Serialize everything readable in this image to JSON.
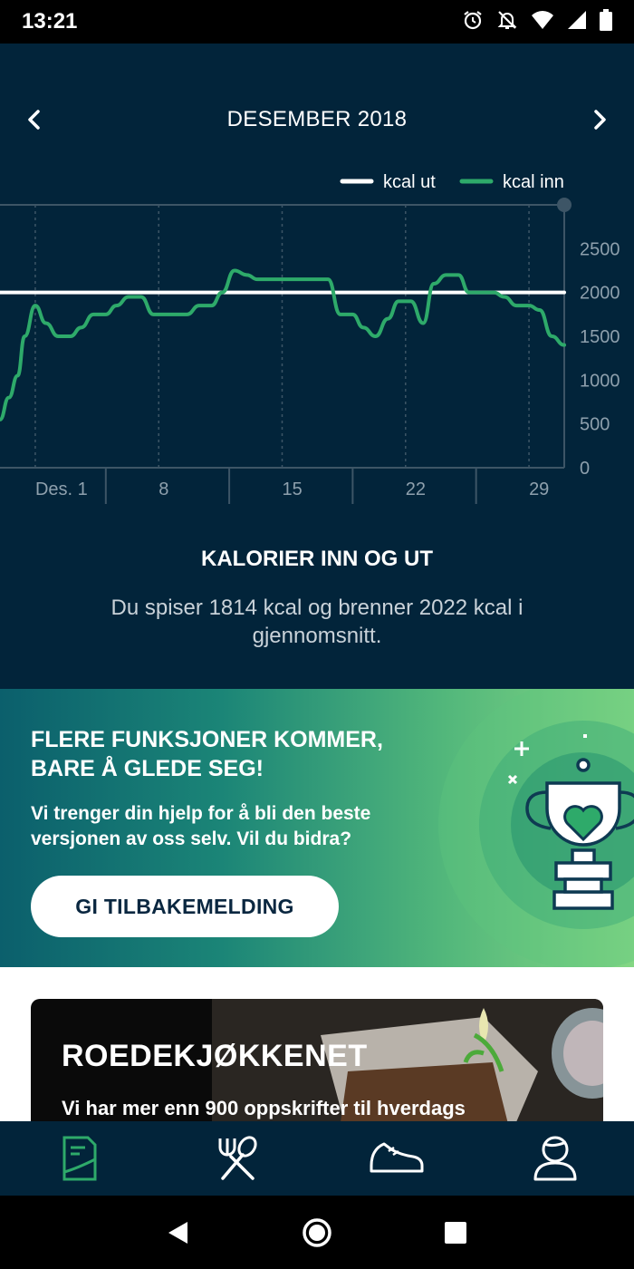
{
  "status": {
    "time": "13:21"
  },
  "header": {
    "month": "DESEMBER 2018"
  },
  "chart_data": {
    "type": "line",
    "legend": [
      "kcal ut",
      "kcal inn"
    ],
    "legend_position": "top-right",
    "x_ticks": [
      "Des. 1",
      "8",
      "15",
      "22",
      "29"
    ],
    "y_ticks": [
      "2500",
      "2000",
      "1500",
      "1000",
      "500",
      "0"
    ],
    "ylim": [
      0,
      3000
    ],
    "series": [
      {
        "name": "kcal ut",
        "color": "#ffffff",
        "x": [
          -1,
          31
        ],
        "y": [
          2000,
          2000
        ]
      },
      {
        "name": "kcal inn",
        "color": "#2eaa6a",
        "x": [
          -1,
          -0.5,
          0,
          0.4,
          1,
          1.6,
          2.3,
          3,
          3.6,
          4.3,
          5,
          5.6,
          6.3,
          7,
          7.7,
          8.3,
          9,
          9.6,
          10.3,
          11,
          11.6,
          12.3,
          13,
          13.6,
          14.3,
          15,
          15.6,
          16.3,
          17,
          17.6,
          18.3,
          19,
          19.6,
          20.3,
          21,
          21.6,
          22.3,
          23,
          23.6,
          24.3,
          25,
          25.6,
          26.3,
          27,
          27.6,
          28.3,
          29,
          29.6,
          30.3,
          31
        ],
        "y": [
          550,
          800,
          1050,
          1500,
          1850,
          1650,
          1500,
          1500,
          1600,
          1750,
          1750,
          1850,
          1950,
          1950,
          1750,
          1750,
          1750,
          1750,
          1850,
          1850,
          2000,
          2250,
          2200,
          2150,
          2150,
          2150,
          2150,
          2150,
          2150,
          2150,
          1750,
          1750,
          1600,
          1500,
          1700,
          1900,
          1900,
          1650,
          2100,
          2200,
          2200,
          2000,
          2000,
          2000,
          1950,
          1850,
          1850,
          1800,
          1500,
          1400
        ]
      }
    ],
    "grid": true
  },
  "summary": {
    "title": "KALORIER INN OG UT",
    "text": "Du spiser 1814 kcal og brenner 2022 kcal i gjennomsnitt."
  },
  "promo": {
    "title": "FLERE FUNKSJONER KOMMER, BARE Å GLEDE SEG!",
    "text": "Vi trenger din hjelp for å bli den beste versjonen av oss selv. Vil du bidra?",
    "button": "GI TILBAKEMELDING",
    "icon": "trophy-heart-icon"
  },
  "recipe": {
    "title": "ROEDEKJØKKENET",
    "subtitle": "Vi har mer enn 900 oppskrifter til hverdags"
  },
  "bottom_nav": [
    {
      "name": "diary",
      "icon": "diary-icon",
      "active": true
    },
    {
      "name": "recipes",
      "icon": "fork-spoon-icon",
      "active": false
    },
    {
      "name": "activity",
      "icon": "shoe-icon",
      "active": false
    },
    {
      "name": "profile",
      "icon": "user-icon",
      "active": false
    }
  ],
  "colors": {
    "bg": "#02243a",
    "accent_green": "#2eaa6a",
    "promo_start": "#0b5f6c",
    "promo_end": "#84d784"
  }
}
